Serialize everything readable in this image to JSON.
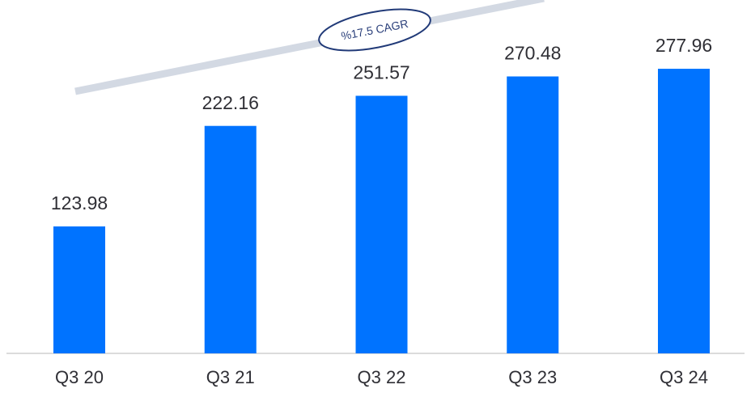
{
  "chart_data": {
    "type": "bar",
    "categories": [
      "Q3 20",
      "Q3 21",
      "Q3 22",
      "Q3 23",
      "Q3 24"
    ],
    "values": [
      123.98,
      222.16,
      251.57,
      270.48,
      277.96
    ],
    "color": "#0073ff",
    "annotation": "%17.5 CAGR"
  }
}
